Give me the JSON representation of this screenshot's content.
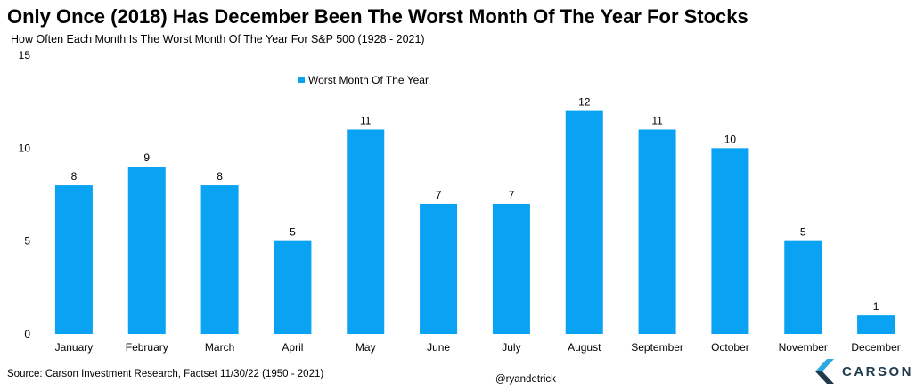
{
  "header": {
    "title": "Only Once (2018) Has December Been The Worst Month Of The Year For Stocks",
    "subtitle": "How Often Each Month Is The Worst Month Of The Year For S&P 500 (1928 - 2021)"
  },
  "footer": {
    "source": "Source: Carson Investment Research, Factset 11/30/22 (1950 - 2021)",
    "handle": "@ryandetrick",
    "logo_text": "CARSON",
    "logo_icon": "carson-chevron-icon"
  },
  "chart_data": {
    "type": "bar",
    "categories": [
      "January",
      "February",
      "March",
      "April",
      "May",
      "June",
      "July",
      "August",
      "September",
      "October",
      "November",
      "December"
    ],
    "series": [
      {
        "name": "Worst Month Of The Year",
        "color": "#0aa2f2",
        "values": [
          8,
          9,
          8,
          5,
          11,
          7,
          7,
          12,
          11,
          10,
          5,
          1
        ]
      }
    ],
    "ylim": [
      0,
      15
    ],
    "yticks": [
      0,
      5,
      10,
      15
    ],
    "grid": false,
    "legend": "top-left",
    "data_labels": true
  },
  "colors": {
    "logo_primary": "#1f3a4d",
    "logo_accent": "#2fa8df"
  }
}
